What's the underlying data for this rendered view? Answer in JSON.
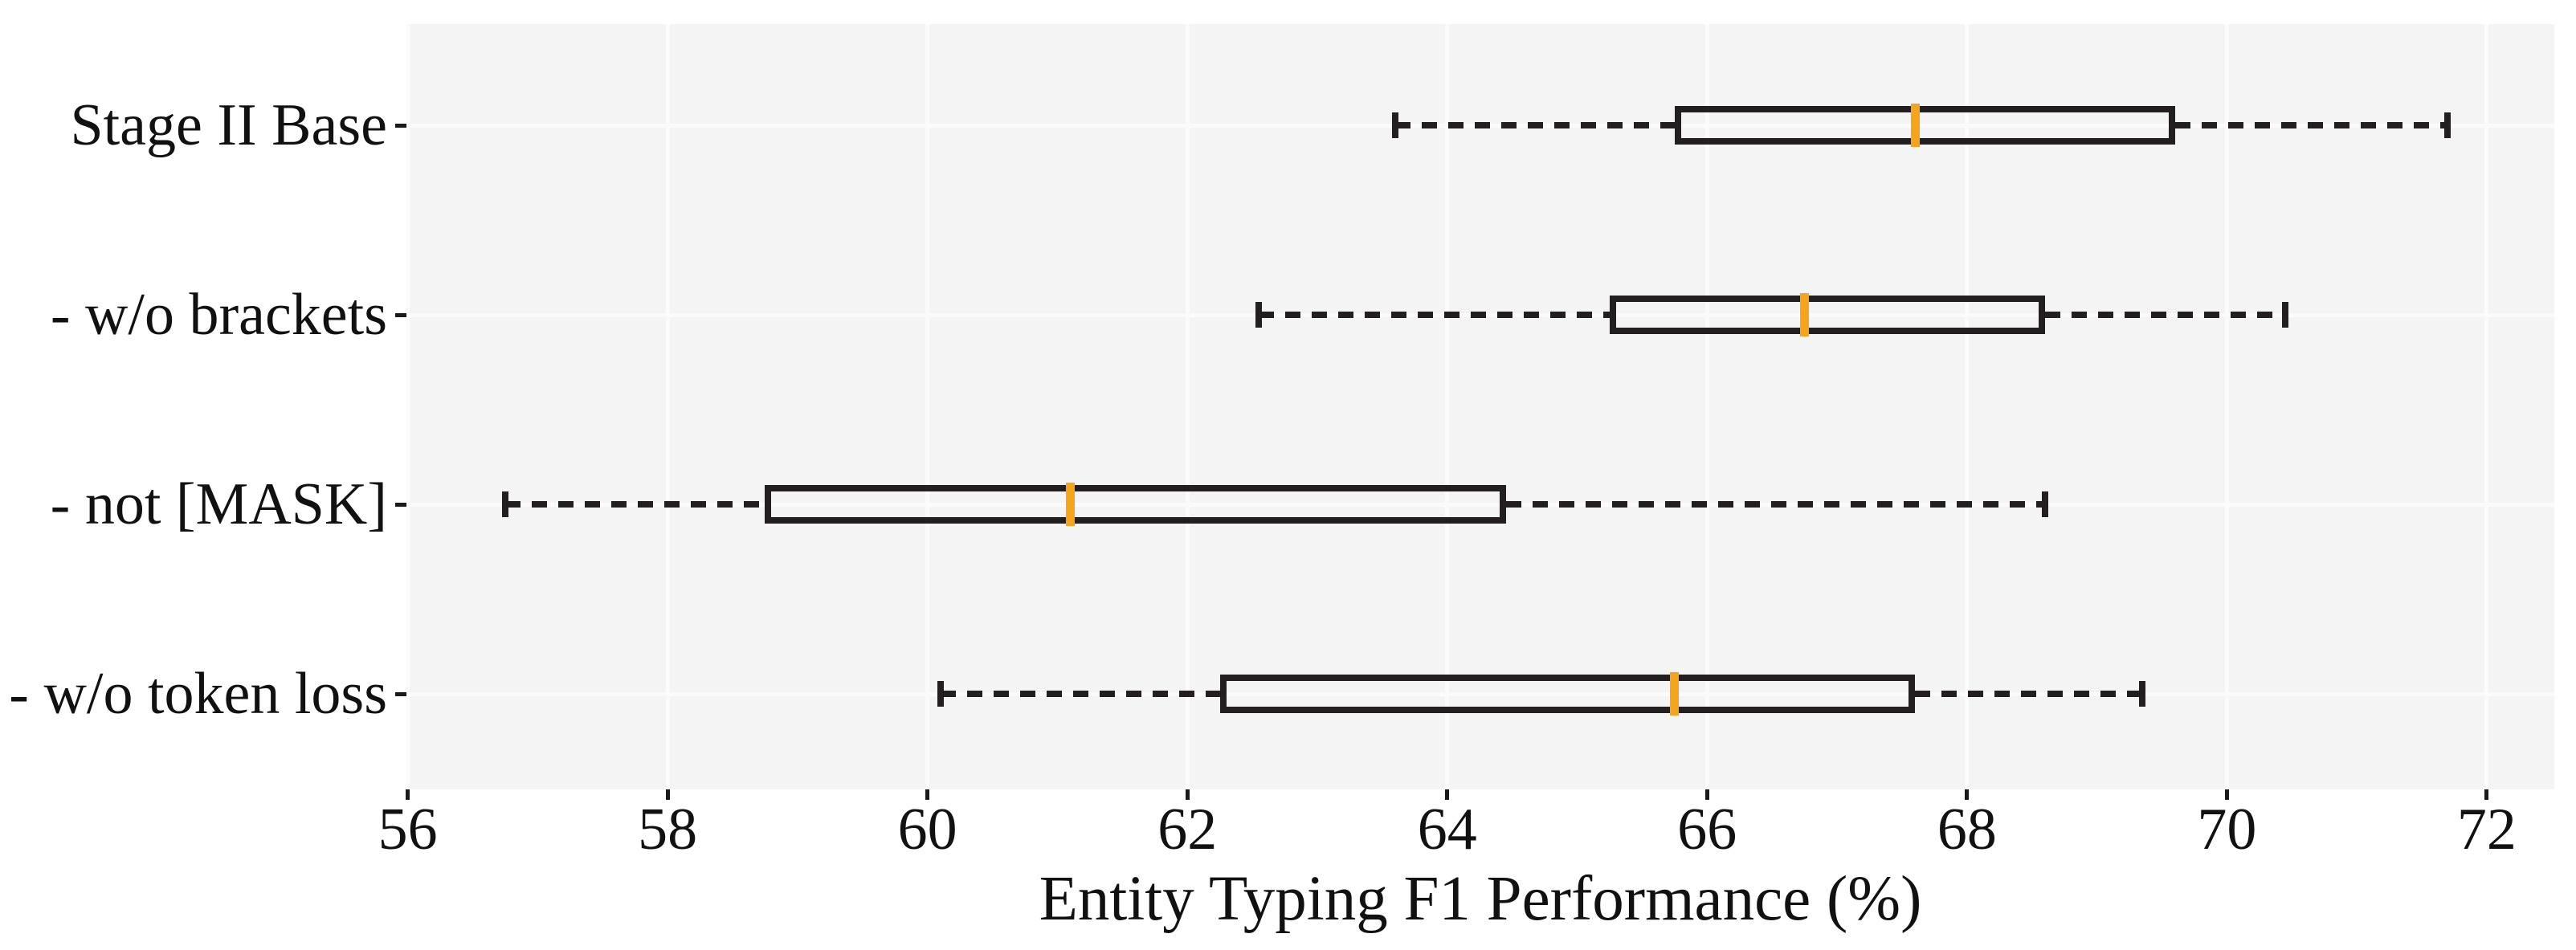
{
  "chart_data": {
    "type": "boxplot",
    "orientation": "horizontal",
    "title": "",
    "xlabel": "Entity Typing F1 Performance (%)",
    "ylabel": "",
    "xlim": [
      55.99,
      72.52
    ],
    "xticks": [
      56,
      58,
      60,
      62,
      64,
      66,
      68,
      70,
      72
    ],
    "grid": "on",
    "categories": [
      "Stage II Base",
      "- w/o brackets",
      "- not [MASK]",
      "- w/o token loss"
    ],
    "boxes": [
      {
        "label": "Stage II Base",
        "whisker_low": 63.6,
        "q1": 65.75,
        "median": 67.6,
        "q3": 69.6,
        "whisker_high": 71.7
      },
      {
        "label": "- w/o brackets",
        "whisker_low": 62.55,
        "q1": 65.25,
        "median": 66.75,
        "q3": 68.6,
        "whisker_high": 70.45
      },
      {
        "label": "- not [MASK]",
        "whisker_low": 56.75,
        "q1": 58.75,
        "median": 61.1,
        "q3": 64.45,
        "whisker_high": 68.6
      },
      {
        "label": "- w/o token loss",
        "whisker_low": 60.1,
        "q1": 62.25,
        "median": 65.75,
        "q3": 67.6,
        "whisker_high": 69.35
      }
    ]
  },
  "colors": {
    "median": "#f7a41d",
    "box_edge": "#231f20",
    "plot_background": "#f5f4f4",
    "gridline": "#fbfbfb",
    "text": "#111111",
    "page_background": "#ffffff"
  }
}
